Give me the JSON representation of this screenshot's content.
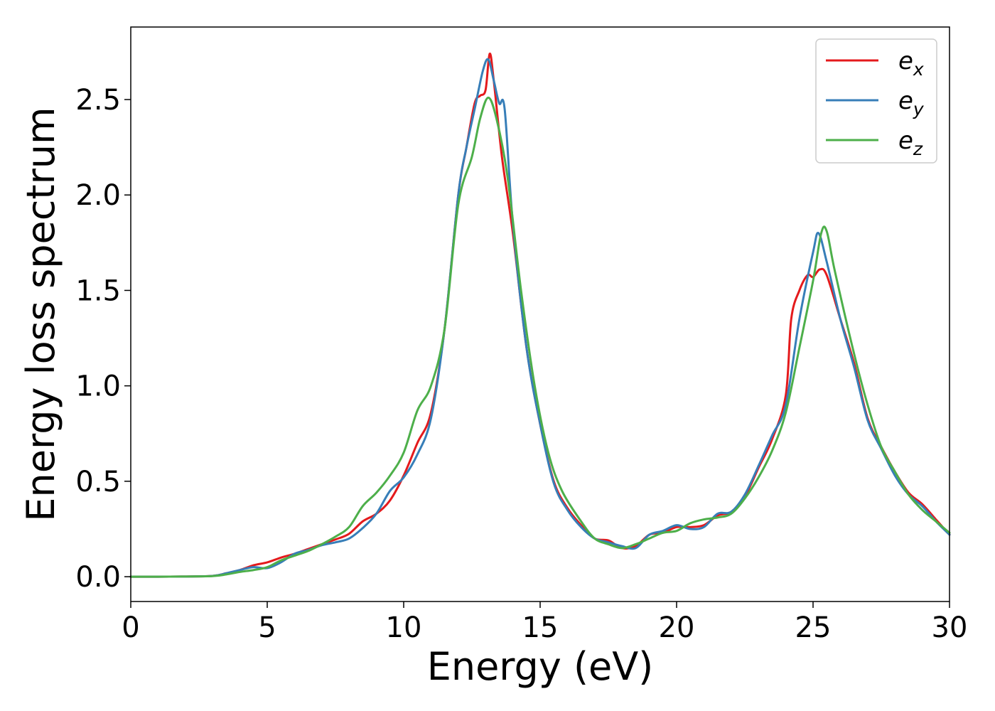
{
  "chart_data": {
    "type": "line",
    "title": "",
    "xlabel": "Energy (eV)",
    "ylabel": "Energy loss spectrum",
    "xlim": [
      0,
      30
    ],
    "ylim": [
      -0.13,
      2.88
    ],
    "xticks": [
      0,
      5,
      10,
      15,
      20,
      25,
      30
    ],
    "xtick_labels": [
      "0",
      "5",
      "10",
      "15",
      "20",
      "25",
      "30"
    ],
    "yticks": [
      0.0,
      0.5,
      1.0,
      1.5,
      2.0,
      2.5
    ],
    "ytick_labels": [
      "0.0",
      "0.5",
      "1.0",
      "1.5",
      "2.0",
      "2.5"
    ],
    "grid": false,
    "legend_position": "top-right",
    "series": [
      {
        "name": "e_x",
        "legend_base": "e",
        "legend_sub": "x",
        "color": "#e41a1c",
        "points": [
          [
            0,
            0.0
          ],
          [
            1,
            0.0
          ],
          [
            2,
            0.001
          ],
          [
            3,
            0.004
          ],
          [
            3.5,
            0.018
          ],
          [
            4,
            0.035
          ],
          [
            4.5,
            0.06
          ],
          [
            5,
            0.075
          ],
          [
            5.5,
            0.1
          ],
          [
            6,
            0.12
          ],
          [
            6.5,
            0.145
          ],
          [
            7,
            0.17
          ],
          [
            7.5,
            0.195
          ],
          [
            8,
            0.225
          ],
          [
            8.5,
            0.29
          ],
          [
            9,
            0.33
          ],
          [
            9.5,
            0.4
          ],
          [
            10,
            0.53
          ],
          [
            10.5,
            0.7
          ],
          [
            11,
            0.86
          ],
          [
            11.5,
            1.3
          ],
          [
            12,
            2.0
          ],
          [
            12.3,
            2.25
          ],
          [
            12.6,
            2.48
          ],
          [
            12.8,
            2.52
          ],
          [
            13,
            2.55
          ],
          [
            13.15,
            2.74
          ],
          [
            13.3,
            2.6
          ],
          [
            13.6,
            2.2
          ],
          [
            14,
            1.8
          ],
          [
            14.5,
            1.2
          ],
          [
            15,
            0.8
          ],
          [
            15.5,
            0.5
          ],
          [
            16,
            0.36
          ],
          [
            16.5,
            0.27
          ],
          [
            17,
            0.2
          ],
          [
            17.5,
            0.19
          ],
          [
            18,
            0.15
          ],
          [
            18.5,
            0.16
          ],
          [
            19,
            0.22
          ],
          [
            19.5,
            0.23
          ],
          [
            20,
            0.26
          ],
          [
            20.5,
            0.26
          ],
          [
            21,
            0.27
          ],
          [
            21.5,
            0.32
          ],
          [
            22,
            0.34
          ],
          [
            22.5,
            0.42
          ],
          [
            23,
            0.57
          ],
          [
            23.5,
            0.72
          ],
          [
            24,
            0.95
          ],
          [
            24.2,
            1.35
          ],
          [
            24.5,
            1.5
          ],
          [
            24.8,
            1.58
          ],
          [
            25,
            1.57
          ],
          [
            25.25,
            1.61
          ],
          [
            25.5,
            1.58
          ],
          [
            26,
            1.35
          ],
          [
            26.5,
            1.12
          ],
          [
            27,
            0.83
          ],
          [
            27.5,
            0.68
          ],
          [
            28,
            0.55
          ],
          [
            28.5,
            0.44
          ],
          [
            29,
            0.38
          ],
          [
            29.5,
            0.3
          ],
          [
            30,
            0.22
          ]
        ]
      },
      {
        "name": "e_y",
        "legend_base": "e",
        "legend_sub": "y",
        "color": "#377eb8",
        "points": [
          [
            0,
            0.0
          ],
          [
            1,
            0.0
          ],
          [
            2,
            0.001
          ],
          [
            3,
            0.004
          ],
          [
            3.5,
            0.018
          ],
          [
            4,
            0.035
          ],
          [
            4.5,
            0.05
          ],
          [
            5,
            0.045
          ],
          [
            5.5,
            0.075
          ],
          [
            6,
            0.12
          ],
          [
            6.5,
            0.14
          ],
          [
            7,
            0.165
          ],
          [
            7.5,
            0.18
          ],
          [
            8,
            0.2
          ],
          [
            8.5,
            0.255
          ],
          [
            9,
            0.33
          ],
          [
            9.5,
            0.45
          ],
          [
            10,
            0.52
          ],
          [
            10.5,
            0.64
          ],
          [
            11,
            0.83
          ],
          [
            11.5,
            1.3
          ],
          [
            12,
            2.0
          ],
          [
            12.3,
            2.25
          ],
          [
            12.6,
            2.45
          ],
          [
            12.9,
            2.65
          ],
          [
            13.1,
            2.71
          ],
          [
            13.3,
            2.6
          ],
          [
            13.5,
            2.48
          ],
          [
            13.7,
            2.45
          ],
          [
            14,
            1.85
          ],
          [
            14.5,
            1.2
          ],
          [
            15,
            0.8
          ],
          [
            15.5,
            0.49
          ],
          [
            16,
            0.35
          ],
          [
            16.5,
            0.26
          ],
          [
            17,
            0.2
          ],
          [
            17.5,
            0.18
          ],
          [
            18,
            0.16
          ],
          [
            18.5,
            0.15
          ],
          [
            19,
            0.22
          ],
          [
            19.5,
            0.24
          ],
          [
            20,
            0.27
          ],
          [
            20.5,
            0.25
          ],
          [
            21,
            0.26
          ],
          [
            21.5,
            0.33
          ],
          [
            22,
            0.34
          ],
          [
            22.5,
            0.43
          ],
          [
            23,
            0.58
          ],
          [
            23.5,
            0.74
          ],
          [
            24,
            0.9
          ],
          [
            24.5,
            1.35
          ],
          [
            25,
            1.7
          ],
          [
            25.2,
            1.8
          ],
          [
            25.5,
            1.65
          ],
          [
            26,
            1.35
          ],
          [
            26.5,
            1.1
          ],
          [
            27,
            0.82
          ],
          [
            27.5,
            0.67
          ],
          [
            28,
            0.53
          ],
          [
            28.5,
            0.43
          ],
          [
            29,
            0.37
          ],
          [
            29.5,
            0.29
          ],
          [
            30,
            0.22
          ]
        ]
      },
      {
        "name": "e_z",
        "legend_base": "e",
        "legend_sub": "z",
        "color": "#4daf4a",
        "points": [
          [
            0,
            0.0
          ],
          [
            1,
            0.0
          ],
          [
            2,
            0.001
          ],
          [
            3,
            0.003
          ],
          [
            3.5,
            0.012
          ],
          [
            4,
            0.025
          ],
          [
            4.5,
            0.035
          ],
          [
            5,
            0.05
          ],
          [
            5.5,
            0.085
          ],
          [
            6,
            0.11
          ],
          [
            6.5,
            0.135
          ],
          [
            7,
            0.17
          ],
          [
            7.5,
            0.21
          ],
          [
            8,
            0.26
          ],
          [
            8.5,
            0.37
          ],
          [
            9,
            0.44
          ],
          [
            9.5,
            0.53
          ],
          [
            10,
            0.65
          ],
          [
            10.5,
            0.87
          ],
          [
            11,
            1.0
          ],
          [
            11.5,
            1.3
          ],
          [
            12,
            1.95
          ],
          [
            12.5,
            2.2
          ],
          [
            12.8,
            2.4
          ],
          [
            13.1,
            2.51
          ],
          [
            13.4,
            2.4
          ],
          [
            13.8,
            2.1
          ],
          [
            14.3,
            1.5
          ],
          [
            14.8,
            1.0
          ],
          [
            15.3,
            0.65
          ],
          [
            15.8,
            0.45
          ],
          [
            16.5,
            0.29
          ],
          [
            17,
            0.2
          ],
          [
            17.5,
            0.17
          ],
          [
            18,
            0.15
          ],
          [
            18.5,
            0.17
          ],
          [
            19,
            0.2
          ],
          [
            19.5,
            0.23
          ],
          [
            20,
            0.24
          ],
          [
            20.5,
            0.28
          ],
          [
            21,
            0.3
          ],
          [
            21.5,
            0.31
          ],
          [
            22,
            0.33
          ],
          [
            22.5,
            0.41
          ],
          [
            23,
            0.52
          ],
          [
            23.5,
            0.66
          ],
          [
            24,
            0.86
          ],
          [
            24.5,
            1.2
          ],
          [
            25,
            1.55
          ],
          [
            25.3,
            1.8
          ],
          [
            25.5,
            1.81
          ],
          [
            25.8,
            1.6
          ],
          [
            26.5,
            1.17
          ],
          [
            27,
            0.9
          ],
          [
            27.5,
            0.68
          ],
          [
            28,
            0.55
          ],
          [
            28.5,
            0.43
          ],
          [
            29,
            0.35
          ],
          [
            29.5,
            0.29
          ],
          [
            30,
            0.23
          ]
        ]
      }
    ]
  }
}
